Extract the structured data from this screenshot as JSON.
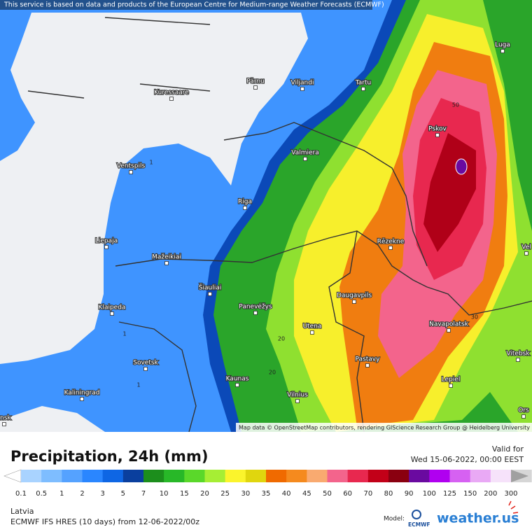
{
  "header": {
    "notice": "This service is based on data and products of the European Centre for Medium-range Weather Forecasts (ECMWF)"
  },
  "map": {
    "cities": [
      "Luga",
      "Pärnu",
      "Viljandi",
      "Tartu",
      "Kuressaare",
      "Pskov",
      "Valmiera",
      "Ventspils",
      "Riga",
      "Liepaja",
      "Rēzekne",
      "Mažeikiai",
      "Šiauliai",
      "Daugavpils",
      "Klaipeda",
      "Panevėžys",
      "Navapolatsk",
      "Utena",
      "Vitebsk",
      "Sovetsk",
      "Pastavy",
      "Kaunas",
      "Lepiel",
      "Vilnius",
      "Kaliningrad",
      "Ors",
      "Vel",
      "nsk"
    ],
    "contour_labels": [
      "50",
      "30",
      "20",
      "20",
      "1",
      "1",
      "1"
    ],
    "attribution": "Map data © OpenStreetMap contributors, rendering GIScience Research Group @ Heidelberg University"
  },
  "footer": {
    "title": "Precipitation, 24h (mm)",
    "valid_label": "Valid for",
    "valid_time": "Wed 15-06-2022, 00:00 EEST",
    "legend": {
      "labels": [
        "0.1",
        "0.5",
        "1",
        "2",
        "3",
        "5",
        "7",
        "10",
        "15",
        "20",
        "25",
        "30",
        "35",
        "40",
        "45",
        "50",
        "60",
        "70",
        "80",
        "90",
        "100",
        "125",
        "150",
        "200",
        "300"
      ],
      "colors": [
        "#a9d3ff",
        "#7ebdff",
        "#55a2ff",
        "#2a86ff",
        "#0e66e4",
        "#0a3f9e",
        "#1c8e1c",
        "#28b828",
        "#5ad82a",
        "#a6ee34",
        "#fbf42c",
        "#e0d60e",
        "#f06a00",
        "#f58a1e",
        "#f9aa70",
        "#f3648c",
        "#e8284f",
        "#c20018",
        "#8a0010",
        "#6a0aa0",
        "#b000f0",
        "#d661f2",
        "#e9a9f5",
        "#f6e2fa",
        "#d6d6d6"
      ]
    },
    "region": "Latvia",
    "model_run": "ECMWF IFS HRES (10 days) from 12-06-2022/00z",
    "model_label": "Model:",
    "model_name": "ECMWF",
    "brand": "weather.us"
  }
}
